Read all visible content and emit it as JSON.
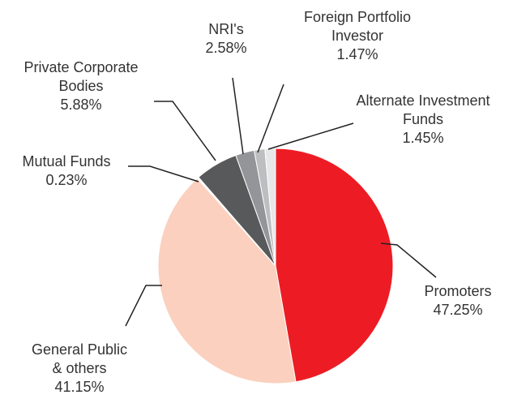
{
  "chart_data": {
    "type": "pie",
    "categories": [
      "Promoters",
      "General Public & others",
      "Mutual Funds",
      "Private Corporate Bodies",
      "NRI's",
      "Foreign Portfolio Investor",
      "Alternate Investment Funds"
    ],
    "values": [
      47.25,
      41.15,
      0.23,
      5.88,
      2.58,
      1.47,
      1.45
    ],
    "value_labels": [
      "47.25%",
      "41.15%",
      "0.23%",
      "5.88%",
      "2.58%",
      "1.47%",
      "1.45%"
    ],
    "colors": [
      "#ed1c24",
      "#fbd0be",
      "#ffffff",
      "#58595b",
      "#939598",
      "#bcbec0",
      "#e6e7e8"
    ]
  }
}
